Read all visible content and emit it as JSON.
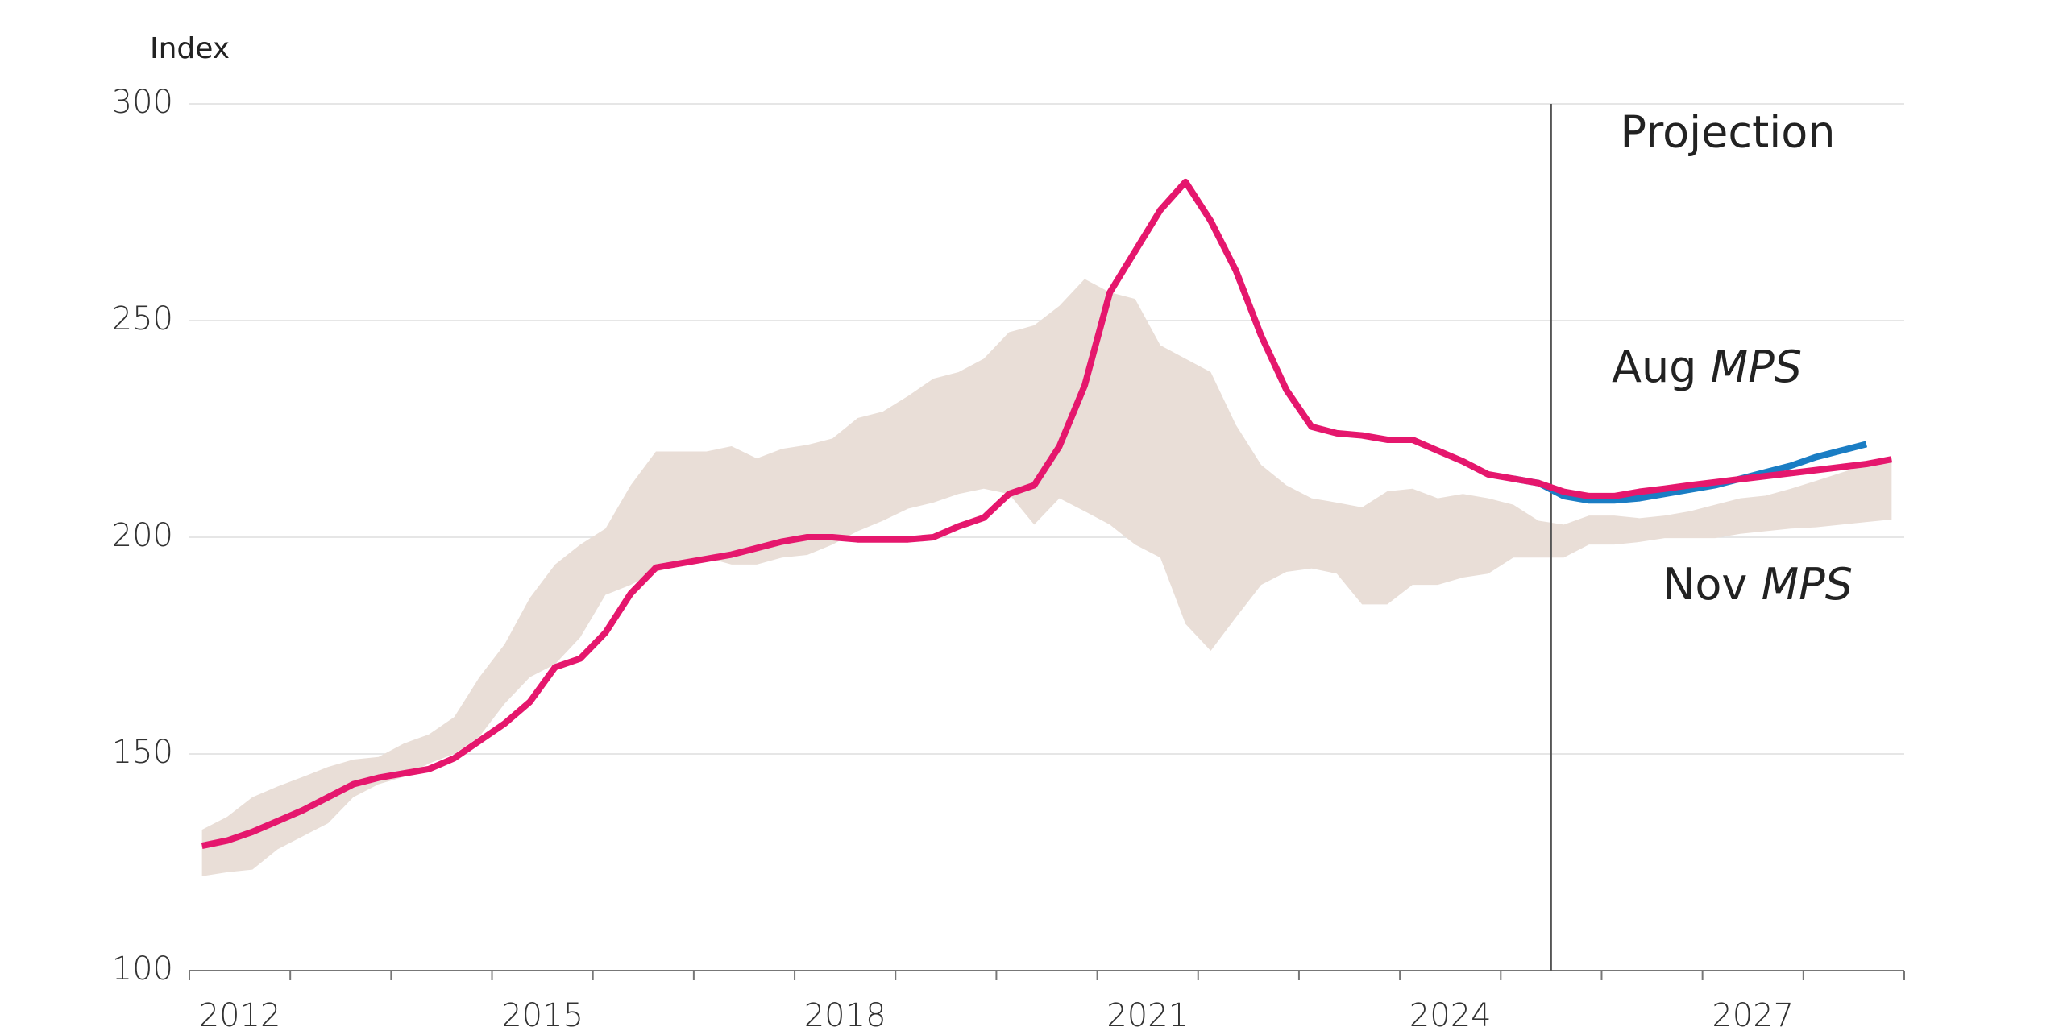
{
  "chart_data": {
    "type": "line",
    "y_label": "Index",
    "annotation": "Projection",
    "projection_start": 2025.5,
    "xlim": [
      2012,
      2029
    ],
    "ylim": [
      100,
      300
    ],
    "yticks": [
      100,
      150,
      200,
      250,
      300
    ],
    "xticks": [
      {
        "value": 2012.5,
        "label": "2012"
      },
      {
        "value": 2015.5,
        "label": "2015"
      },
      {
        "value": 2018.5,
        "label": "2018"
      },
      {
        "value": 2021.5,
        "label": "2021"
      },
      {
        "value": 2024.5,
        "label": "2024"
      },
      {
        "value": 2027.5,
        "label": "2027"
      }
    ],
    "xtick_marks": [
      2012,
      2013,
      2014,
      2015,
      2016,
      2017,
      2018,
      2019,
      2020,
      2021,
      2022,
      2023,
      2024,
      2025,
      2026,
      2027,
      2028,
      2029
    ],
    "grid": true,
    "x": [
      2012.125,
      2012.375,
      2012.625,
      2012.875,
      2013.125,
      2013.375,
      2013.625,
      2013.875,
      2014.125,
      2014.375,
      2014.625,
      2014.875,
      2015.125,
      2015.375,
      2015.625,
      2015.875,
      2016.125,
      2016.375,
      2016.625,
      2016.875,
      2017.125,
      2017.375,
      2017.625,
      2017.875,
      2018.125,
      2018.375,
      2018.625,
      2018.875,
      2019.125,
      2019.375,
      2019.625,
      2019.875,
      2020.125,
      2020.375,
      2020.625,
      2020.875,
      2021.125,
      2021.375,
      2021.625,
      2021.875,
      2022.125,
      2022.375,
      2022.625,
      2022.875,
      2023.125,
      2023.375,
      2023.625,
      2023.875,
      2024.125,
      2024.375,
      2024.625,
      2024.875,
      2025.125,
      2025.375,
      2025.625,
      2025.875,
      2026.125,
      2026.375,
      2026.625,
      2026.875,
      2027.125,
      2027.375,
      2027.625,
      2027.875,
      2028.125,
      2028.375,
      2028.625,
      2028.875
    ],
    "band": {
      "color": "#e9ded7",
      "upper": [
        132.5,
        135.5,
        140,
        142.5,
        144.7,
        147,
        148.7,
        149.3,
        152.4,
        154.5,
        158.5,
        167.7,
        175.3,
        186,
        193.7,
        198.3,
        202,
        212,
        219.8,
        219.8,
        219.8,
        221,
        218.2,
        220.4,
        221.3,
        222.8,
        227.5,
        229,
        232.6,
        236.6,
        238.1,
        241.2,
        247.3,
        248.9,
        253.4,
        259.6,
        256.5,
        255,
        244.3,
        241.2,
        238.1,
        225.9,
        216.7,
        212,
        209,
        208,
        206.9,
        210.6,
        211.2,
        209,
        210,
        209,
        207.5,
        203.8,
        202.9,
        205,
        205,
        204.4,
        205,
        206,
        207.5,
        209,
        209.6,
        211.2,
        213,
        214.9,
        216.7,
        218.2
      ],
      "lower": [
        121.8,
        122.7,
        123.3,
        128,
        131,
        134,
        140,
        143,
        144.7,
        147.8,
        150,
        154,
        161.6,
        167.7,
        170.7,
        176.9,
        186.7,
        189,
        192,
        193.7,
        195.3,
        193.7,
        193.7,
        195.3,
        195.9,
        198.3,
        201.4,
        203.8,
        206.6,
        208,
        210,
        211.2,
        210,
        202.9,
        209,
        206,
        202.9,
        198.3,
        195.3,
        180,
        173.8,
        181.5,
        189,
        192,
        192.8,
        191.6,
        184.5,
        184.5,
        189,
        189,
        190.7,
        191.6,
        195.3,
        195.3,
        195.3,
        198.3,
        198.3,
        198.9,
        199.8,
        199.8,
        199.8,
        200.8,
        201.4,
        202,
        202.3,
        202.9,
        203.5,
        204.1
      ]
    },
    "series": [
      {
        "name": "Aug MPS",
        "color": "#1a7dc4",
        "values": [
          null,
          null,
          null,
          null,
          null,
          null,
          null,
          null,
          null,
          null,
          null,
          null,
          null,
          null,
          null,
          null,
          null,
          null,
          null,
          null,
          null,
          null,
          null,
          null,
          null,
          null,
          null,
          null,
          null,
          null,
          null,
          null,
          null,
          null,
          null,
          null,
          null,
          null,
          null,
          null,
          null,
          null,
          null,
          null,
          null,
          null,
          null,
          null,
          null,
          null,
          null,
          null,
          213.5,
          212.5,
          209.5,
          208.5,
          208.5,
          209,
          210,
          211,
          212,
          213.5,
          215,
          216.5,
          218.5,
          220,
          221.5,
          null
        ]
      },
      {
        "name": "Nov MPS",
        "color": "#e5176d",
        "values": [
          128.8,
          130,
          132,
          134.5,
          137,
          140,
          143,
          144.5,
          145.5,
          146.5,
          149,
          153,
          157,
          162,
          170,
          172,
          178,
          187,
          193,
          194,
          195,
          196,
          197.5,
          199,
          200,
          200,
          199.5,
          199.5,
          199.5,
          200,
          202.5,
          204.5,
          210,
          212,
          221,
          235,
          256.5,
          266,
          275.5,
          282,
          273,
          261.5,
          246.5,
          234,
          225.5,
          224,
          223.5,
          222.5,
          222.5,
          220,
          217.5,
          214.5,
          213.5,
          212.5,
          210.5,
          209.5,
          209.5,
          210.5,
          211.2,
          212,
          212.7,
          213.4,
          214.1,
          214.8,
          215.5,
          216.2,
          216.9,
          218
        ]
      }
    ]
  }
}
